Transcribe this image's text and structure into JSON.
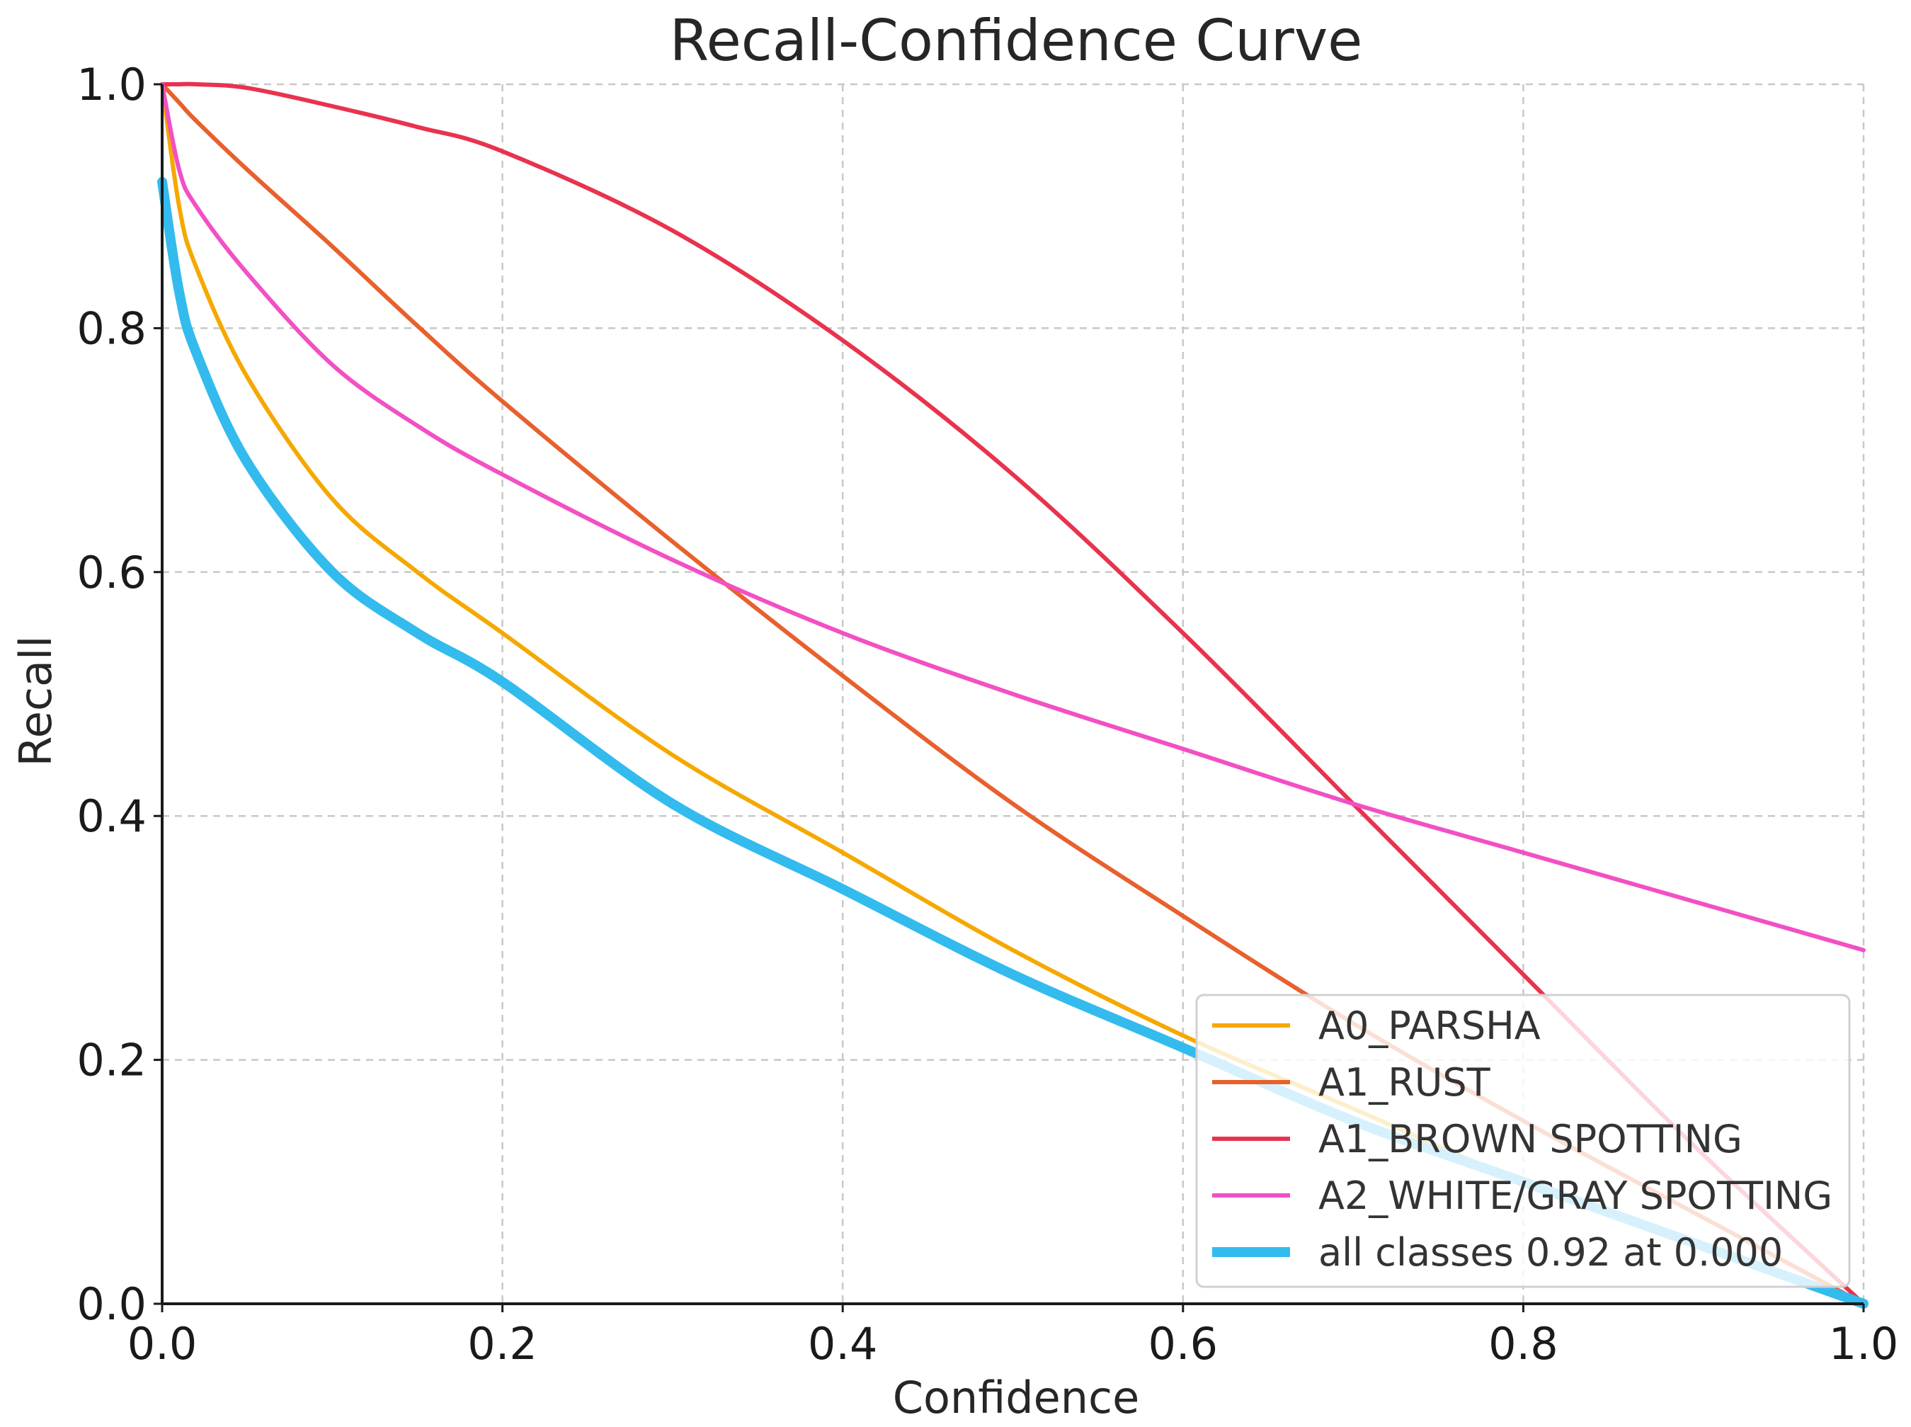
{
  "chart_data": {
    "type": "line",
    "title": "Recall-Confidence Curve",
    "xlabel": "Confidence",
    "ylabel": "Recall",
    "xlim": [
      0,
      1
    ],
    "ylim": [
      0,
      1
    ],
    "grid": true,
    "legend_position": "bottom-right",
    "x_ticks": [
      "0.0",
      "0.2",
      "0.4",
      "0.6",
      "0.8",
      "1.0"
    ],
    "y_ticks": [
      "0.0",
      "0.2",
      "0.4",
      "0.6",
      "0.8",
      "1.0"
    ],
    "x": [
      0.0,
      0.01,
      0.02,
      0.05,
      0.1,
      0.15,
      0.2,
      0.3,
      0.4,
      0.5,
      0.6,
      0.7,
      0.8,
      0.9,
      1.0
    ],
    "series": [
      {
        "name": "A0_PARSHA",
        "color": "#f5a800",
        "values": [
          1.0,
          0.9,
          0.85,
          0.76,
          0.66,
          0.6,
          0.55,
          0.45,
          0.37,
          0.29,
          0.22,
          0.16,
          0.1,
          0.05,
          0.0
        ]
      },
      {
        "name": "A1_RUST",
        "color": "#e8602c",
        "values": [
          1.0,
          0.985,
          0.97,
          0.93,
          0.867,
          0.802,
          0.74,
          0.625,
          0.515,
          0.41,
          0.318,
          0.23,
          0.15,
          0.075,
          0.0
        ]
      },
      {
        "name": "A1_BROWN SPOTTING",
        "color": "#e8334e",
        "values": [
          1.0,
          1.0,
          1.0,
          0.997,
          0.982,
          0.965,
          0.945,
          0.88,
          0.79,
          0.68,
          0.55,
          0.41,
          0.27,
          0.13,
          0.0
        ]
      },
      {
        "name": "A2_WHITE/GRAY SPOTTING",
        "color": "#f250c4",
        "values": [
          1.0,
          0.93,
          0.9,
          0.845,
          0.77,
          0.72,
          0.68,
          0.61,
          0.55,
          0.5,
          0.455,
          0.41,
          0.37,
          0.33,
          0.29
        ]
      },
      {
        "name": "all classes 0.92 at 0.000",
        "color": "#33bbee",
        "thick": true,
        "values": [
          0.92,
          0.83,
          0.78,
          0.69,
          0.6,
          0.55,
          0.51,
          0.41,
          0.34,
          0.27,
          0.21,
          0.15,
          0.1,
          0.05,
          0.0
        ]
      }
    ]
  }
}
